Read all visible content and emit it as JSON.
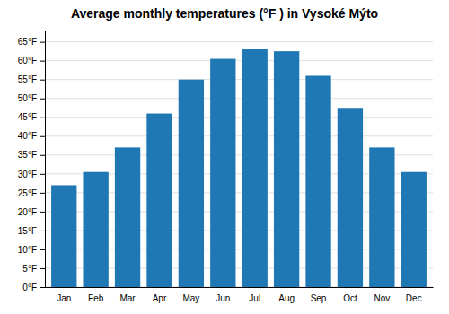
{
  "chart_data": {
    "type": "bar",
    "title": "Average monthly temperatures (°F ) in Vysoké Mýto",
    "categories": [
      "Jan",
      "Feb",
      "Mar",
      "Apr",
      "May",
      "Jun",
      "Jul",
      "Aug",
      "Sep",
      "Oct",
      "Nov",
      "Dec"
    ],
    "values": [
      27,
      30.5,
      37,
      46,
      55,
      60.5,
      63,
      62.5,
      56,
      47.5,
      37,
      30.5
    ],
    "ylim": [
      0,
      68
    ],
    "yticks": [
      {
        "value": 0,
        "label": "0°F"
      },
      {
        "value": 5,
        "label": "5°F"
      },
      {
        "value": 10,
        "label": "10°F"
      },
      {
        "value": 15,
        "label": "15°F"
      },
      {
        "value": 20,
        "label": "20°F"
      },
      {
        "value": 25,
        "label": "25°F"
      },
      {
        "value": 30,
        "label": "30°F"
      },
      {
        "value": 35,
        "label": "35°F"
      },
      {
        "value": 40,
        "label": "40°F"
      },
      {
        "value": 45,
        "label": "45°F"
      },
      {
        "value": 50,
        "label": "50°F"
      },
      {
        "value": 55,
        "label": "55°F"
      },
      {
        "value": 60,
        "label": "60°F"
      },
      {
        "value": 65,
        "label": "65°F"
      }
    ],
    "grid": true
  }
}
